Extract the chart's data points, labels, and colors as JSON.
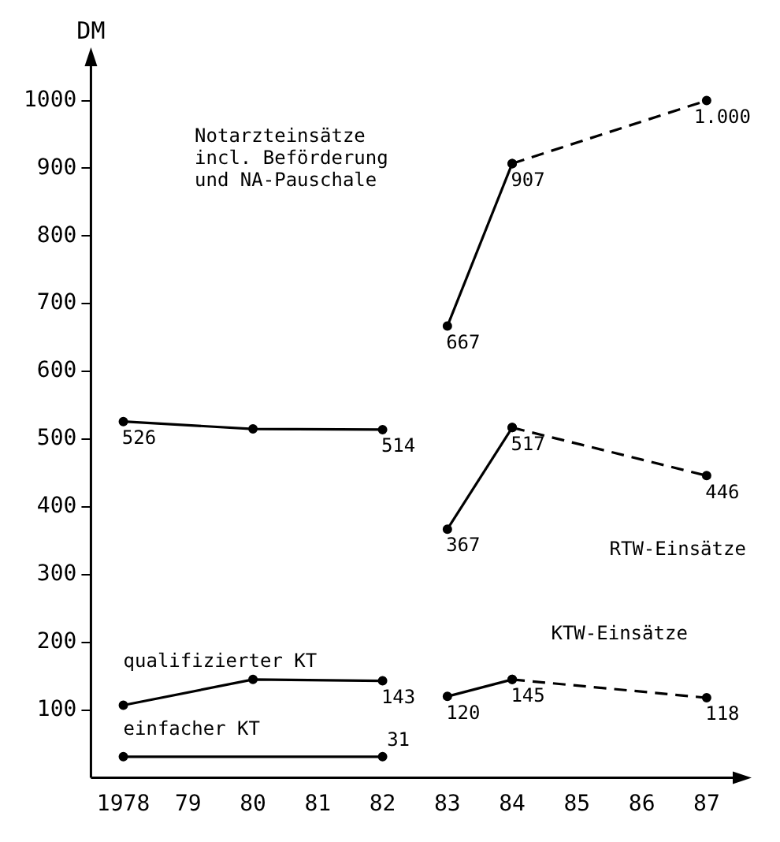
{
  "chart_data": {
    "type": "line",
    "ylabel": "DM",
    "categories": [
      "1978",
      "79",
      "80",
      "81",
      "82",
      "83",
      "84",
      "85",
      "86",
      "87"
    ],
    "series": [
      {
        "color": "#000000",
        "line_style": "solid",
        "values": [
          526,
          null,
          515,
          null,
          514,
          null,
          null,
          null,
          null,
          null
        ],
        "value_labels": [
          "526",
          null,
          null,
          null,
          "514",
          null,
          null,
          null,
          null,
          null
        ]
      },
      {
        "color": "#000000",
        "line_style": "solid",
        "values": [
          null,
          null,
          null,
          null,
          null,
          667,
          907,
          null,
          null,
          null
        ],
        "value_labels": [
          null,
          null,
          null,
          null,
          null,
          "667",
          "907",
          null,
          null,
          null
        ]
      },
      {
        "color": "#000000",
        "line_style": "dashed",
        "values": [
          null,
          null,
          null,
          null,
          null,
          null,
          907,
          null,
          null,
          1000
        ],
        "value_labels": [
          null,
          null,
          null,
          null,
          null,
          null,
          null,
          null,
          null,
          "1.000"
        ]
      },
      {
        "color": "#000000",
        "line_style": "solid",
        "values": [
          null,
          null,
          null,
          null,
          null,
          367,
          517,
          null,
          null,
          null
        ],
        "value_labels": [
          null,
          null,
          null,
          null,
          null,
          "367",
          "517",
          null,
          null,
          null
        ]
      },
      {
        "color": "#000000",
        "line_style": "dashed",
        "values": [
          null,
          null,
          null,
          null,
          null,
          null,
          517,
          null,
          null,
          446
        ],
        "value_labels": [
          null,
          null,
          null,
          null,
          null,
          null,
          null,
          null,
          null,
          "446"
        ]
      },
      {
        "color": "#000000",
        "line_style": "solid",
        "values": [
          107,
          null,
          145,
          null,
          143,
          null,
          null,
          null,
          null,
          null
        ],
        "value_labels": [
          null,
          null,
          null,
          null,
          "143",
          null,
          null,
          null,
          null,
          null
        ]
      },
      {
        "color": "#000000",
        "line_style": "solid",
        "values": [
          31,
          null,
          null,
          null,
          31,
          null,
          null,
          null,
          null,
          null
        ],
        "value_labels": [
          null,
          null,
          null,
          null,
          "31",
          null,
          null,
          null,
          null,
          null
        ]
      },
      {
        "color": "#000000",
        "line_style": "solid",
        "values": [
          null,
          null,
          null,
          null,
          null,
          120,
          145,
          null,
          null,
          null
        ],
        "value_labels": [
          null,
          null,
          null,
          null,
          null,
          "120",
          "145",
          null,
          null,
          null
        ]
      },
      {
        "color": "#000000",
        "line_style": "dashed",
        "values": [
          null,
          null,
          null,
          null,
          null,
          null,
          145,
          null,
          null,
          118
        ],
        "value_labels": [
          null,
          null,
          null,
          null,
          null,
          null,
          null,
          null,
          null,
          "118"
        ]
      }
    ],
    "annotations": [
      "Notarzteinsätze\nincl. Beförderung\nund NA-Pauschale",
      "RTW-Einsätze",
      "KTW-Einsätze",
      "qualifizierter KT",
      "einfacher KT"
    ],
    "ylim": [
      0,
      1060
    ],
    "yticks": [
      100,
      200,
      300,
      400,
      500,
      600,
      700,
      800,
      900,
      1000
    ],
    "grid": false,
    "legend": false,
    "marker": "circle"
  }
}
